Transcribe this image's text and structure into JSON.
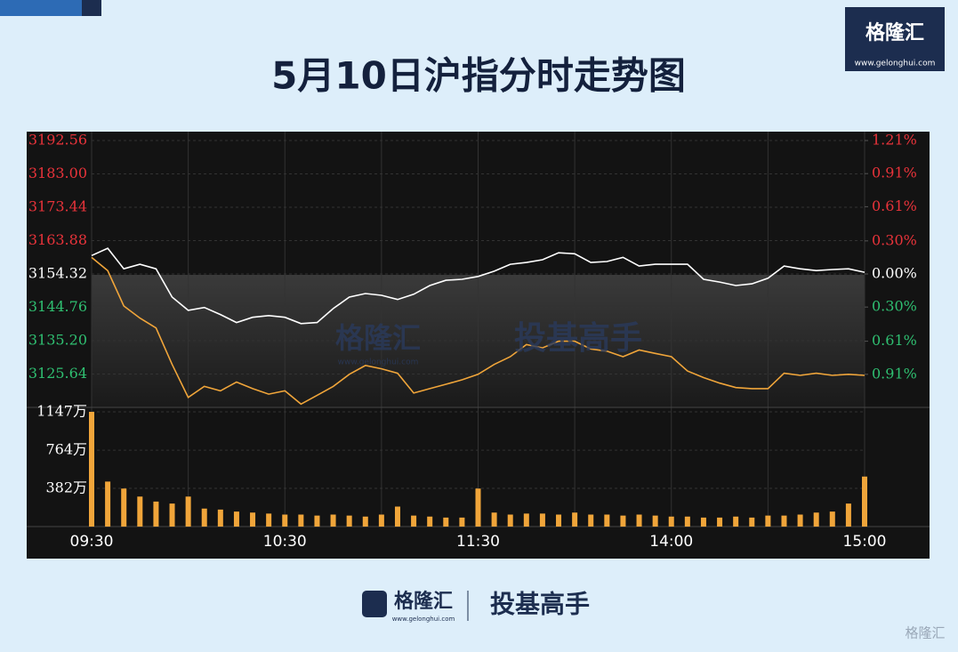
{
  "header": {
    "title": "5月10日沪指分时走势图"
  },
  "logo": {
    "brand": "格隆汇",
    "url": "www.gelonghui.com"
  },
  "watermark": {
    "brand": "格隆汇",
    "slogan": "投基高手",
    "url": "www.gelonghui.com"
  },
  "footer": {
    "brand": "格隆汇",
    "url": "www.gelonghui.com",
    "slogan": "投基高手",
    "corner": "格隆汇"
  },
  "chart_data": {
    "type": "line",
    "categories": [
      "09:30",
      null,
      null,
      null,
      null,
      null,
      null,
      null,
      null,
      null,
      null,
      null,
      "10:30",
      null,
      null,
      null,
      null,
      null,
      null,
      null,
      null,
      null,
      null,
      null,
      "11:30",
      null,
      null,
      null,
      null,
      null,
      null,
      null,
      null,
      null,
      null,
      null,
      "14:00",
      null,
      null,
      null,
      null,
      null,
      null,
      null,
      null,
      null,
      null,
      null,
      "15:00"
    ],
    "series": [
      {
        "color": "#ffffff",
        "values": [
          3159.6,
          3161.7,
          3155.8,
          3157.1,
          3155.8,
          3147.7,
          3143.9,
          3144.7,
          3142.7,
          3140.4,
          3141.9,
          3142.4,
          3141.9,
          3140.1,
          3140.4,
          3144.4,
          3147.7,
          3148.7,
          3148.2,
          3147.0,
          3148.5,
          3151.0,
          3152.5,
          3152.8,
          3153.6,
          3155.1,
          3157.1,
          3157.6,
          3158.4,
          3160.4,
          3160.1,
          3157.6,
          3157.9,
          3159.1,
          3156.6,
          3157.1,
          3157.1,
          3157.1,
          3152.8,
          3152.0,
          3151.0,
          3151.5,
          3153.1,
          3156.6,
          3155.8,
          3155.3,
          3155.6,
          3155.8,
          3154.8
        ]
      },
      {
        "color": "#f0a53a",
        "axis": "y2",
        "values": [
          0.15,
          0.03,
          -0.29,
          -0.4,
          -0.49,
          -0.82,
          -1.12,
          -1.02,
          -1.06,
          -0.98,
          -1.04,
          -1.09,
          -1.06,
          -1.18,
          -1.1,
          -1.02,
          -0.91,
          -0.83,
          -0.86,
          -0.9,
          -1.08,
          -1.04,
          -1.0,
          -0.96,
          -0.91,
          -0.82,
          -0.75,
          -0.64,
          -0.67,
          -0.61,
          -0.61,
          -0.68,
          -0.7,
          -0.75,
          -0.69,
          -0.72,
          -0.75,
          -0.88,
          -0.94,
          -0.99,
          -1.03,
          -1.04,
          -1.04,
          -0.9,
          -0.92,
          -0.9,
          -0.92,
          -0.91,
          -0.92
        ]
      }
    ],
    "ylim": [
      3116.08,
      3192.56
    ],
    "yticks": [
      3192.56,
      {
        "value": 3183,
        "label": "3183.00"
      },
      3173.44,
      3163.88,
      3154.32,
      3144.76,
      {
        "value": 3135.2,
        "label": "3135.20"
      },
      3125.64
    ],
    "y2lim": [
      -1.21,
      1.21
    ],
    "y2ticks": [
      {
        "value": 1.21,
        "label": "1.21%"
      },
      {
        "value": 0.91,
        "label": "0.91%"
      },
      {
        "value": 0.61,
        "label": "0.61%"
      },
      {
        "value": 0.3,
        "label": "0.30%"
      },
      {
        "value": 0,
        "label": "0.00%"
      },
      {
        "value": -0.3,
        "label": "0.30%"
      },
      {
        "value": -0.61,
        "label": "0.61%"
      },
      {
        "value": -0.91,
        "label": "0.91%"
      }
    ],
    "up_color": "#e8333a",
    "down_color": "#2fbf71",
    "grid": true,
    "volume": {
      "color": "#f0a53a",
      "ylim": [
        0,
        1147
      ],
      "yticks": [
        {
          "value": 1147,
          "label": "1147万"
        },
        {
          "value": 764,
          "label": "764万"
        },
        {
          "value": 382,
          "label": "382万"
        }
      ],
      "values": [
        1147,
        450,
        380,
        300,
        250,
        230,
        300,
        180,
        170,
        150,
        140,
        130,
        120,
        120,
        110,
        120,
        110,
        100,
        120,
        200,
        110,
        100,
        90,
        90,
        380,
        140,
        120,
        130,
        130,
        120,
        140,
        120,
        120,
        110,
        120,
        110,
        100,
        100,
        90,
        90,
        100,
        90,
        110,
        110,
        120,
        140,
        150,
        230,
        500
      ]
    }
  }
}
